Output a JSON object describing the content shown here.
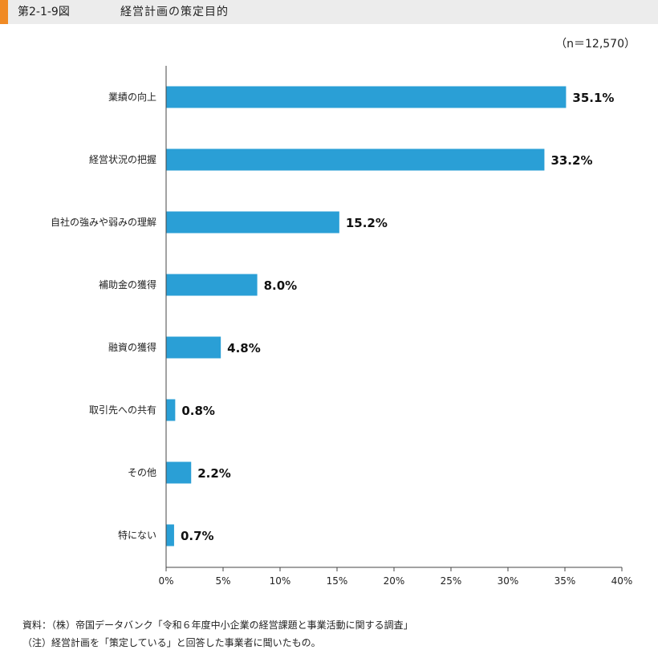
{
  "header": {
    "figure_label": "第2-1-9図",
    "title": "経営計画の策定目的"
  },
  "sample_size": "（n＝12,570）",
  "chart_data": {
    "type": "bar",
    "orientation": "horizontal",
    "categories": [
      "業績の向上",
      "経営状況の把握",
      "自社の強みや弱みの理解",
      "補助金の獲得",
      "融資の獲得",
      "取引先への共有",
      "その他",
      "特にない"
    ],
    "values": [
      35.1,
      33.2,
      15.2,
      8.0,
      4.8,
      0.8,
      2.2,
      0.7
    ],
    "value_labels": [
      "35.1%",
      "33.2%",
      "15.2%",
      "8.0%",
      "4.8%",
      "0.8%",
      "2.2%",
      "0.7%"
    ],
    "xlim": [
      0,
      40
    ],
    "x_ticks": [
      0,
      5,
      10,
      15,
      20,
      25,
      30,
      35,
      40
    ],
    "x_tick_labels": [
      "0%",
      "5%",
      "10%",
      "15%",
      "20%",
      "25%",
      "30%",
      "35%",
      "40%"
    ],
    "bar_color": "#2a9fd6",
    "grid": false
  },
  "footnotes": {
    "source": "資料：（株）帝国データバンク「令和６年度中小企業の経営課題と事業活動に関する調査」",
    "note": "（注）経営計画を「策定している」と回答した事業者に聞いたもの。"
  }
}
